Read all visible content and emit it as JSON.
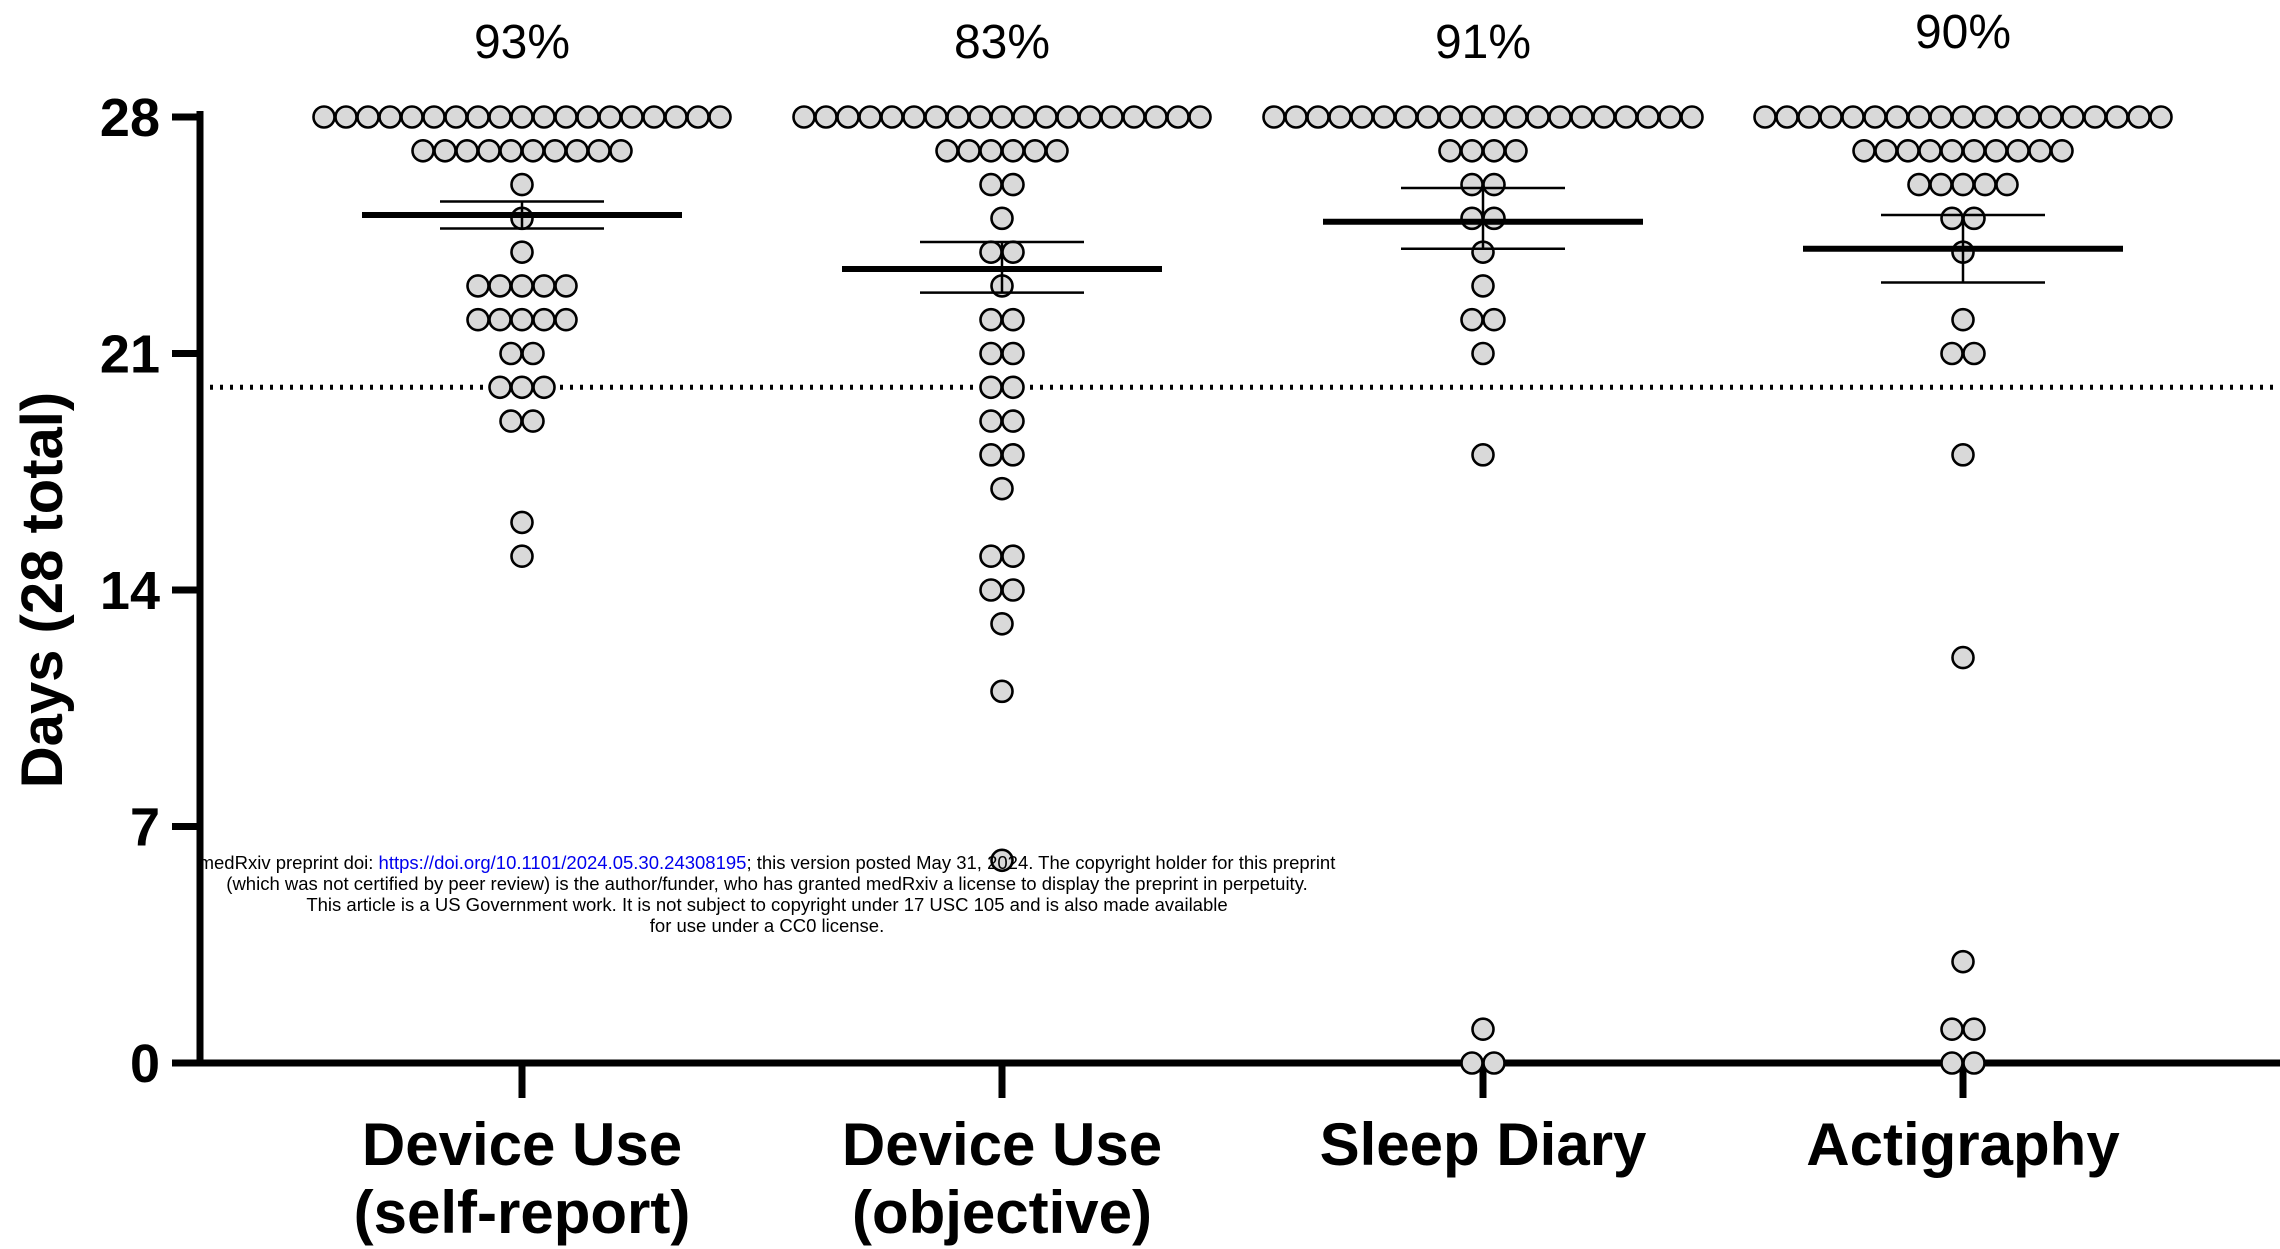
{
  "chart_data": {
    "type": "scatter",
    "subtype": "dot-plot with mean and error bars",
    "ylabel": "Days (28 total)",
    "ylim": [
      0,
      28
    ],
    "yticks": [
      "0",
      "7",
      "14",
      "21",
      "28"
    ],
    "reference_line": {
      "y": 20,
      "style": "dotted"
    },
    "grid": false,
    "categories": [
      {
        "line1": "Device Use",
        "line2": "(self-report)",
        "percent": "93%",
        "mean": 25.1,
        "err_low": 24.7,
        "err_high": 25.5,
        "points": [
          28,
          28,
          28,
          28,
          28,
          28,
          28,
          28,
          28,
          28,
          28,
          28,
          28,
          28,
          28,
          28,
          28,
          28,
          28,
          27,
          27,
          27,
          27,
          27,
          27,
          27,
          27,
          27,
          27,
          26,
          25,
          24,
          23,
          23,
          23,
          23,
          23,
          22,
          22,
          22,
          22,
          22,
          21,
          21,
          20,
          20,
          20,
          19,
          19,
          16,
          15
        ]
      },
      {
        "line1": "Device Use",
        "line2": "(objective)",
        "percent": "83%",
        "mean": 23.5,
        "err_low": 22.8,
        "err_high": 24.3,
        "points": [
          28,
          28,
          28,
          28,
          28,
          28,
          28,
          28,
          28,
          28,
          28,
          28,
          28,
          28,
          28,
          28,
          28,
          28,
          28,
          27,
          27,
          27,
          27,
          27,
          27,
          26,
          26,
          25,
          24,
          24,
          23,
          22,
          22,
          21,
          21,
          20,
          20,
          19,
          19,
          18,
          18,
          17,
          15,
          15,
          14,
          14,
          13,
          11,
          6
        ]
      },
      {
        "line1": "Sleep Diary",
        "line2": "",
        "percent": "91%",
        "mean": 24.9,
        "err_low": 24.1,
        "err_high": 25.9,
        "points": [
          28,
          28,
          28,
          28,
          28,
          28,
          28,
          28,
          28,
          28,
          28,
          28,
          28,
          28,
          28,
          28,
          28,
          28,
          28,
          28,
          27,
          27,
          27,
          27,
          26,
          26,
          25,
          25,
          24,
          23,
          22,
          22,
          21,
          18,
          1,
          0,
          0
        ]
      },
      {
        "line1": "Actigraphy",
        "line2": "",
        "percent": "90%",
        "mean": 24.1,
        "err_low": 23.1,
        "err_high": 25.1,
        "points": [
          28,
          28,
          28,
          28,
          28,
          28,
          28,
          28,
          28,
          28,
          28,
          28,
          28,
          28,
          28,
          28,
          28,
          28,
          28,
          27,
          27,
          27,
          27,
          27,
          27,
          27,
          27,
          27,
          27,
          26,
          26,
          26,
          26,
          26,
          25,
          25,
          24,
          22,
          21,
          21,
          18,
          12,
          3,
          1,
          1,
          0,
          0
        ]
      }
    ]
  },
  "notice": {
    "line1_before": "medRxiv preprint doi: ",
    "line1_link": "https://doi.org/10.1101/2024.05.30.24308195",
    "line1_after": "; this version posted May 31, 2024. The copyright holder for this preprint",
    "line2": "(which was not certified by peer review) is the author/funder, who has granted medRxiv a license to display the preprint in perpetuity.",
    "line3": "This article is a US Government work. It is not subject to copyright under 17 USC 105 and is also made available",
    "line4": "for use under a CC0 license."
  }
}
